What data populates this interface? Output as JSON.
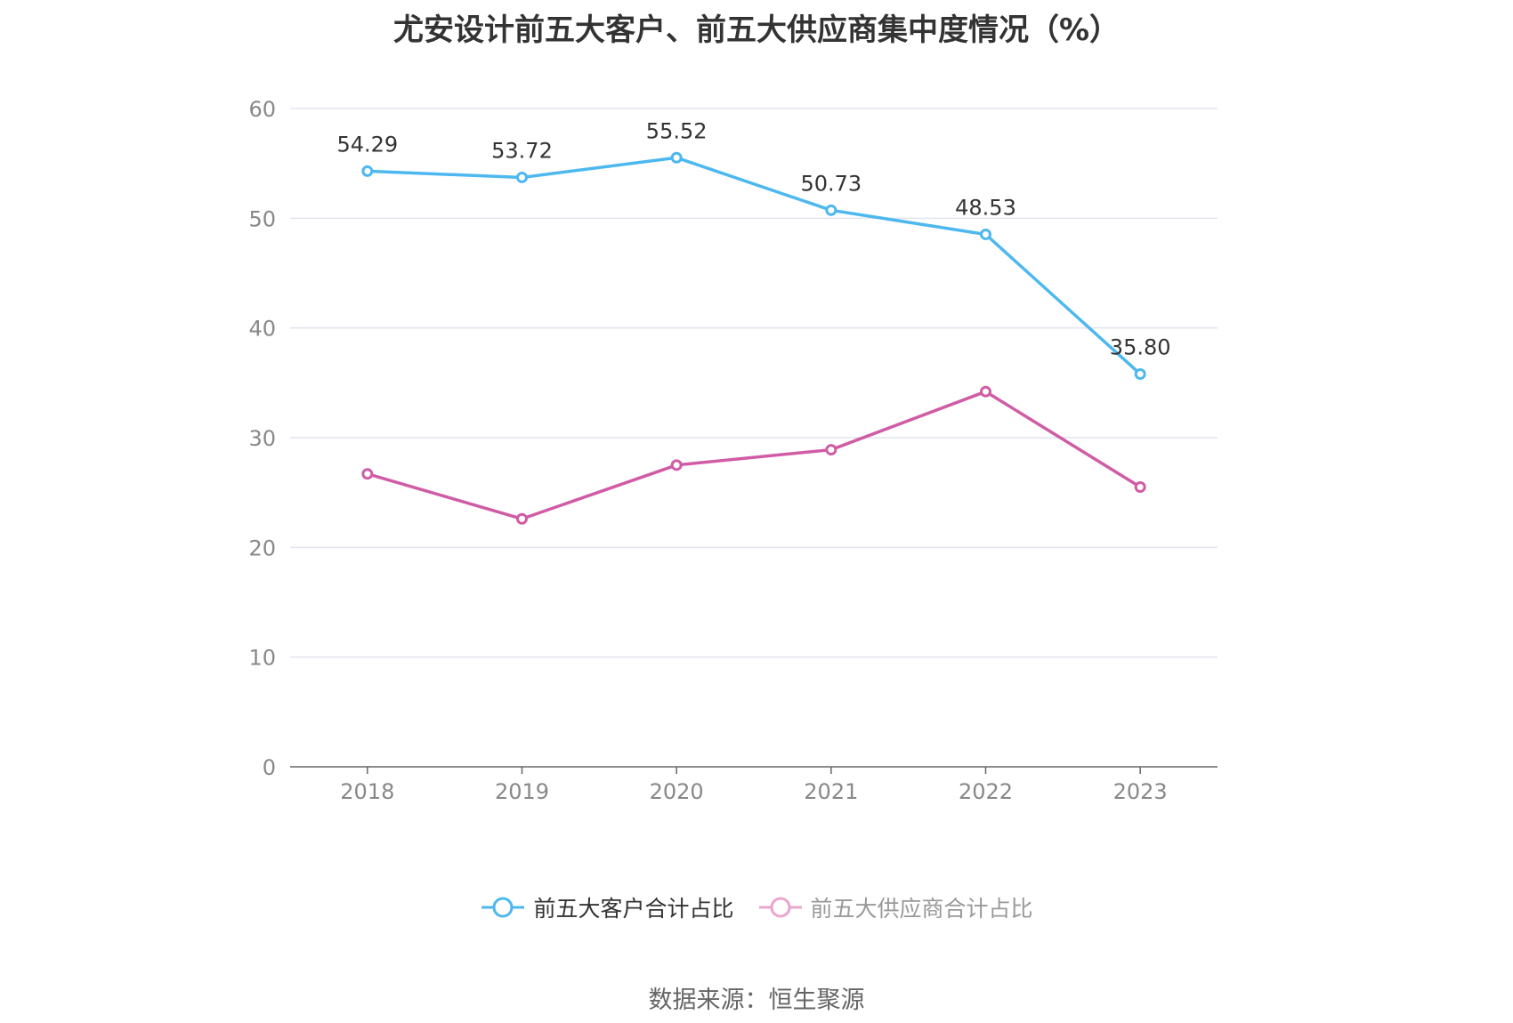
{
  "title": "尤安设计前五大客户、前五大供应商集中度情况（%）",
  "source_text": "数据来源：恒生聚源",
  "colors": {
    "series_customers": "#4db8ef",
    "series_suppliers": "#d05ca5",
    "grid": "#e2e4ee",
    "axis": "#666666",
    "tick_text": "#888888",
    "label_text": "#333333"
  },
  "chart_data": {
    "type": "line",
    "categories": [
      "2018",
      "2019",
      "2020",
      "2021",
      "2022",
      "2023"
    ],
    "ylim": [
      0,
      60
    ],
    "yticks": [
      0,
      10,
      20,
      30,
      40,
      50,
      60
    ],
    "grid": true,
    "legend_position": "bottom",
    "series": [
      {
        "name": "前五大客户合计占比",
        "values": [
          54.29,
          53.72,
          55.52,
          50.73,
          48.53,
          35.8
        ],
        "labels": [
          "54.29",
          "53.72",
          "55.52",
          "50.73",
          "48.53",
          "35.80"
        ],
        "show_labels": true
      },
      {
        "name": "前五大供应商合计占比",
        "values": [
          26.7,
          22.6,
          27.5,
          28.9,
          34.2,
          25.5
        ],
        "show_labels": false
      }
    ]
  }
}
